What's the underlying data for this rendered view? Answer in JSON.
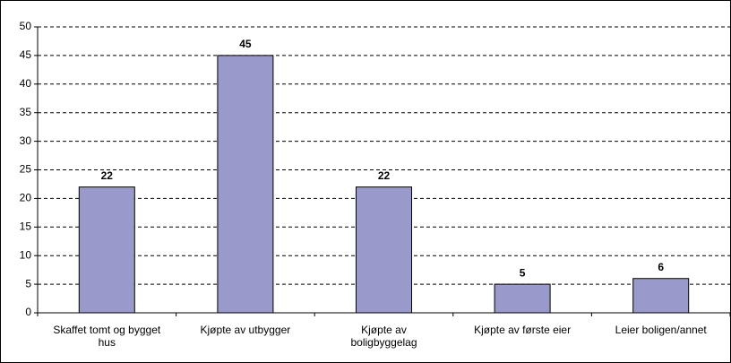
{
  "chart_data": {
    "type": "bar",
    "categories": [
      "Skaffet tomt og bygget hus",
      "Kjøpte av utbygger",
      "Kjøpte av boligbyggelag",
      "Kjøpte av første eier",
      "Leier boligen/annet"
    ],
    "values": [
      22,
      45,
      22,
      5,
      6
    ],
    "color": "#9999cc",
    "ylim": [
      0,
      50
    ],
    "yticks": [
      0,
      5,
      10,
      15,
      20,
      25,
      30,
      35,
      40,
      45,
      50
    ],
    "grid": true
  }
}
